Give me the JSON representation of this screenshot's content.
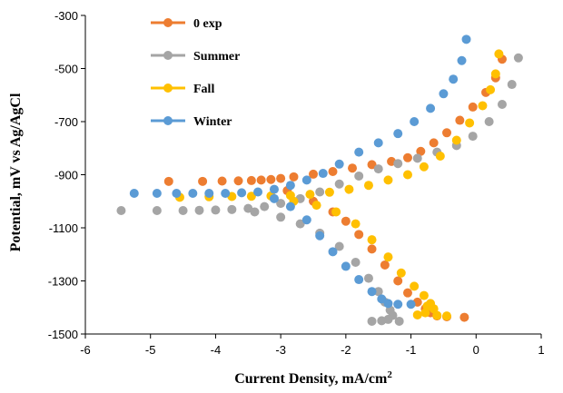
{
  "chart_data": {
    "type": "scatter",
    "title": "",
    "xlabel": "Current Density, mA/cm",
    "xlabel_sup": "2",
    "ylabel": "Potential, mV vs Ag/AgCl",
    "xlim": [
      -6,
      1
    ],
    "ylim": [
      -1500,
      -300
    ],
    "xticks": [
      -6,
      -5,
      -4,
      -3,
      -2,
      -1,
      0,
      1
    ],
    "yticks": [
      -300,
      -500,
      -700,
      -900,
      -1100,
      -1300,
      -1500
    ],
    "grid": false,
    "legend_position": "top-left",
    "series": [
      {
        "name": "0 exp",
        "color": "#ED7D31",
        "points": [
          [
            -4.72,
            -925
          ],
          [
            -4.2,
            -925
          ],
          [
            -3.9,
            -924
          ],
          [
            -3.65,
            -923
          ],
          [
            -3.45,
            -922
          ],
          [
            -3.3,
            -920
          ],
          [
            -3.15,
            -918
          ],
          [
            -3.0,
            -914
          ],
          [
            -2.8,
            -908
          ],
          [
            -2.5,
            -898
          ],
          [
            -2.2,
            -888
          ],
          [
            -1.9,
            -875
          ],
          [
            -1.6,
            -862
          ],
          [
            -1.3,
            -850
          ],
          [
            -1.05,
            -836
          ],
          [
            -0.85,
            -812
          ],
          [
            -0.65,
            -780
          ],
          [
            -0.45,
            -742
          ],
          [
            -0.25,
            -695
          ],
          [
            -0.05,
            -645
          ],
          [
            0.15,
            -590
          ],
          [
            0.3,
            -535
          ],
          [
            0.4,
            -465
          ],
          [
            -2.9,
            -960
          ],
          [
            -2.5,
            -1000
          ],
          [
            -2.2,
            -1040
          ],
          [
            -2.0,
            -1075
          ],
          [
            -1.8,
            -1125
          ],
          [
            -1.6,
            -1180
          ],
          [
            -1.4,
            -1240
          ],
          [
            -1.2,
            -1300
          ],
          [
            -1.05,
            -1345
          ],
          [
            -0.9,
            -1380
          ],
          [
            -0.78,
            -1405
          ],
          [
            -0.7,
            -1420
          ],
          [
            -0.6,
            -1432
          ],
          [
            -0.45,
            -1435
          ],
          [
            -0.18,
            -1437
          ]
        ]
      },
      {
        "name": "Summer",
        "color": "#A5A5A5",
        "points": [
          [
            -5.45,
            -1035
          ],
          [
            -4.9,
            -1035
          ],
          [
            -4.5,
            -1035
          ],
          [
            -4.25,
            -1034
          ],
          [
            -4.0,
            -1033
          ],
          [
            -3.75,
            -1031
          ],
          [
            -3.5,
            -1027
          ],
          [
            -3.25,
            -1020
          ],
          [
            -3.0,
            -1008
          ],
          [
            -2.7,
            -990
          ],
          [
            -2.4,
            -965
          ],
          [
            -2.1,
            -935
          ],
          [
            -1.8,
            -905
          ],
          [
            -1.5,
            -878
          ],
          [
            -1.2,
            -858
          ],
          [
            -0.9,
            -838
          ],
          [
            -0.6,
            -815
          ],
          [
            -0.3,
            -790
          ],
          [
            -0.05,
            -755
          ],
          [
            0.2,
            -700
          ],
          [
            0.4,
            -635
          ],
          [
            0.55,
            -560
          ],
          [
            0.65,
            -460
          ],
          [
            -3.4,
            -1040
          ],
          [
            -3.0,
            -1060
          ],
          [
            -2.7,
            -1085
          ],
          [
            -2.4,
            -1120
          ],
          [
            -2.1,
            -1170
          ],
          [
            -1.85,
            -1230
          ],
          [
            -1.65,
            -1290
          ],
          [
            -1.5,
            -1340
          ],
          [
            -1.4,
            -1380
          ],
          [
            -1.32,
            -1410
          ],
          [
            -1.28,
            -1430
          ],
          [
            -1.35,
            -1445
          ],
          [
            -1.45,
            -1450
          ],
          [
            -1.6,
            -1452
          ],
          [
            -1.18,
            -1452
          ]
        ]
      },
      {
        "name": "Fall",
        "color": "#FFC000",
        "points": [
          [
            -4.55,
            -985
          ],
          [
            -4.1,
            -983
          ],
          [
            -3.75,
            -982
          ],
          [
            -3.45,
            -981
          ],
          [
            -3.15,
            -980
          ],
          [
            -2.85,
            -978
          ],
          [
            -2.55,
            -974
          ],
          [
            -2.25,
            -966
          ],
          [
            -1.95,
            -955
          ],
          [
            -1.65,
            -940
          ],
          [
            -1.35,
            -920
          ],
          [
            -1.05,
            -900
          ],
          [
            -0.8,
            -870
          ],
          [
            -0.55,
            -830
          ],
          [
            -0.3,
            -770
          ],
          [
            -0.1,
            -705
          ],
          [
            0.1,
            -640
          ],
          [
            0.22,
            -580
          ],
          [
            0.3,
            -520
          ],
          [
            0.35,
            -445
          ],
          [
            -2.8,
            -1000
          ],
          [
            -2.45,
            -1015
          ],
          [
            -2.15,
            -1040
          ],
          [
            -1.85,
            -1085
          ],
          [
            -1.6,
            -1145
          ],
          [
            -1.35,
            -1210
          ],
          [
            -1.15,
            -1270
          ],
          [
            -0.95,
            -1320
          ],
          [
            -0.8,
            -1355
          ],
          [
            -0.7,
            -1385
          ],
          [
            -0.65,
            -1405
          ],
          [
            -0.78,
            -1420
          ],
          [
            -0.9,
            -1428
          ],
          [
            -0.6,
            -1430
          ],
          [
            -0.45,
            -1432
          ],
          [
            -0.75,
            -1395
          ]
        ]
      },
      {
        "name": "Winter",
        "color": "#5B9BD5",
        "points": [
          [
            -5.25,
            -970
          ],
          [
            -4.9,
            -970
          ],
          [
            -4.6,
            -970
          ],
          [
            -4.35,
            -970
          ],
          [
            -4.1,
            -970
          ],
          [
            -3.85,
            -970
          ],
          [
            -3.6,
            -968
          ],
          [
            -3.35,
            -965
          ],
          [
            -3.1,
            -955
          ],
          [
            -2.85,
            -940
          ],
          [
            -2.6,
            -920
          ],
          [
            -2.35,
            -895
          ],
          [
            -2.1,
            -860
          ],
          [
            -1.8,
            -815
          ],
          [
            -1.5,
            -780
          ],
          [
            -1.2,
            -745
          ],
          [
            -0.95,
            -700
          ],
          [
            -0.7,
            -650
          ],
          [
            -0.5,
            -595
          ],
          [
            -0.35,
            -540
          ],
          [
            -0.22,
            -470
          ],
          [
            -0.15,
            -390
          ],
          [
            -3.1,
            -990
          ],
          [
            -2.85,
            -1020
          ],
          [
            -2.6,
            -1070
          ],
          [
            -2.4,
            -1130
          ],
          [
            -2.2,
            -1190
          ],
          [
            -2.0,
            -1245
          ],
          [
            -1.8,
            -1295
          ],
          [
            -1.6,
            -1340
          ],
          [
            -1.45,
            -1368
          ],
          [
            -1.35,
            -1385
          ],
          [
            -1.2,
            -1388
          ],
          [
            -1.0,
            -1388
          ]
        ]
      }
    ]
  }
}
